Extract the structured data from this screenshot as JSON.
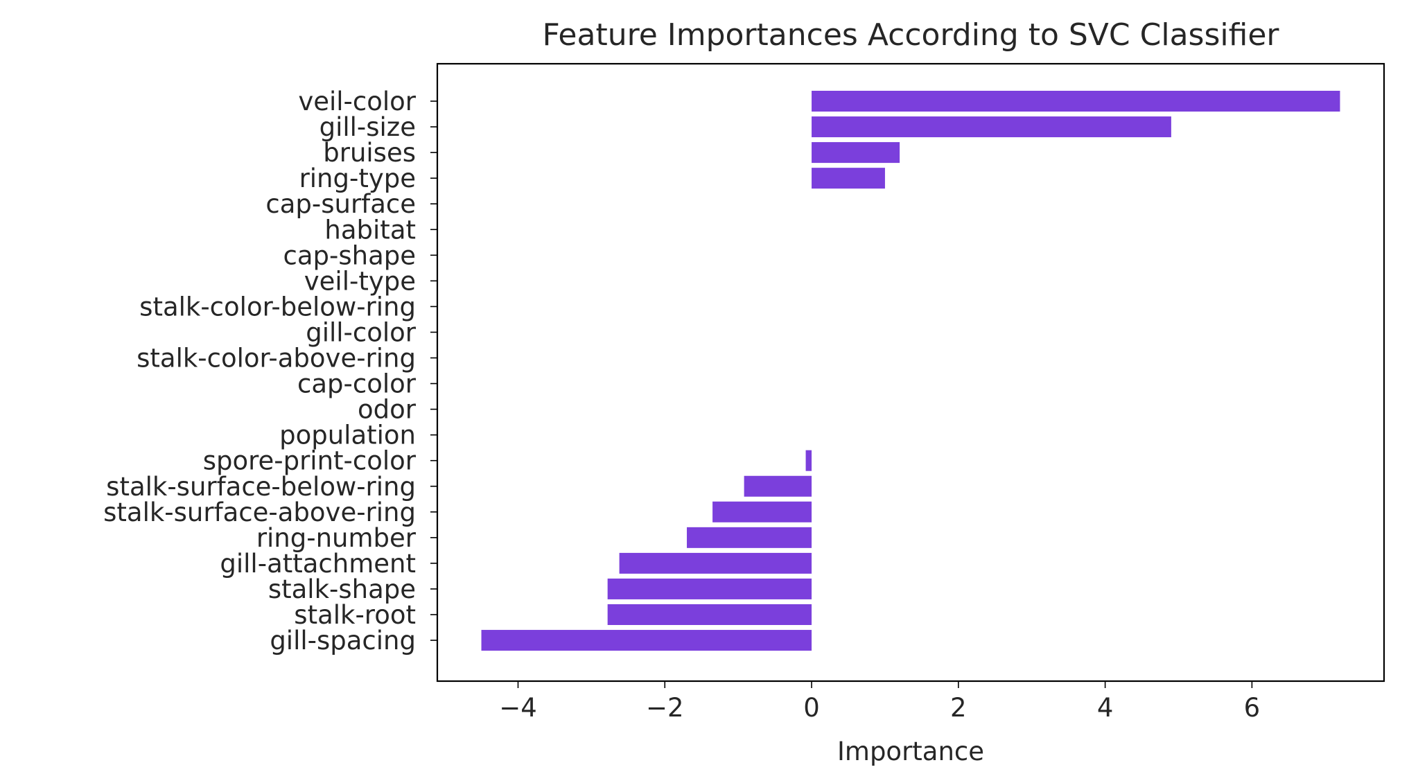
{
  "chart_data": {
    "type": "bar",
    "orientation": "horizontal",
    "title": "Feature Importances According to SVC Classifier",
    "xlabel": "Importance",
    "ylabel": "",
    "xlim": [
      -5.1,
      7.8
    ],
    "xticks": [
      -4,
      -2,
      0,
      2,
      4,
      6
    ],
    "xtick_labels": [
      "−4",
      "−2",
      "0",
      "2",
      "4",
      "6"
    ],
    "grid": false,
    "bar_color": "#7b3fdc",
    "categories": [
      "veil-color",
      "gill-size",
      "bruises",
      "ring-type",
      "cap-surface",
      "habitat",
      "cap-shape",
      "veil-type",
      "stalk-color-below-ring",
      "gill-color",
      "stalk-color-above-ring",
      "cap-color",
      "odor",
      "population",
      "spore-print-color",
      "stalk-surface-below-ring",
      "stalk-surface-above-ring",
      "ring-number",
      "gill-attachment",
      "stalk-shape",
      "stalk-root",
      "gill-spacing"
    ],
    "values": [
      7.2,
      4.9,
      1.2,
      1.0,
      0,
      0,
      0,
      0,
      0,
      0,
      0,
      0,
      0,
      0,
      -0.08,
      -0.92,
      -1.35,
      -1.7,
      -2.62,
      -2.78,
      -2.78,
      -4.5
    ]
  }
}
